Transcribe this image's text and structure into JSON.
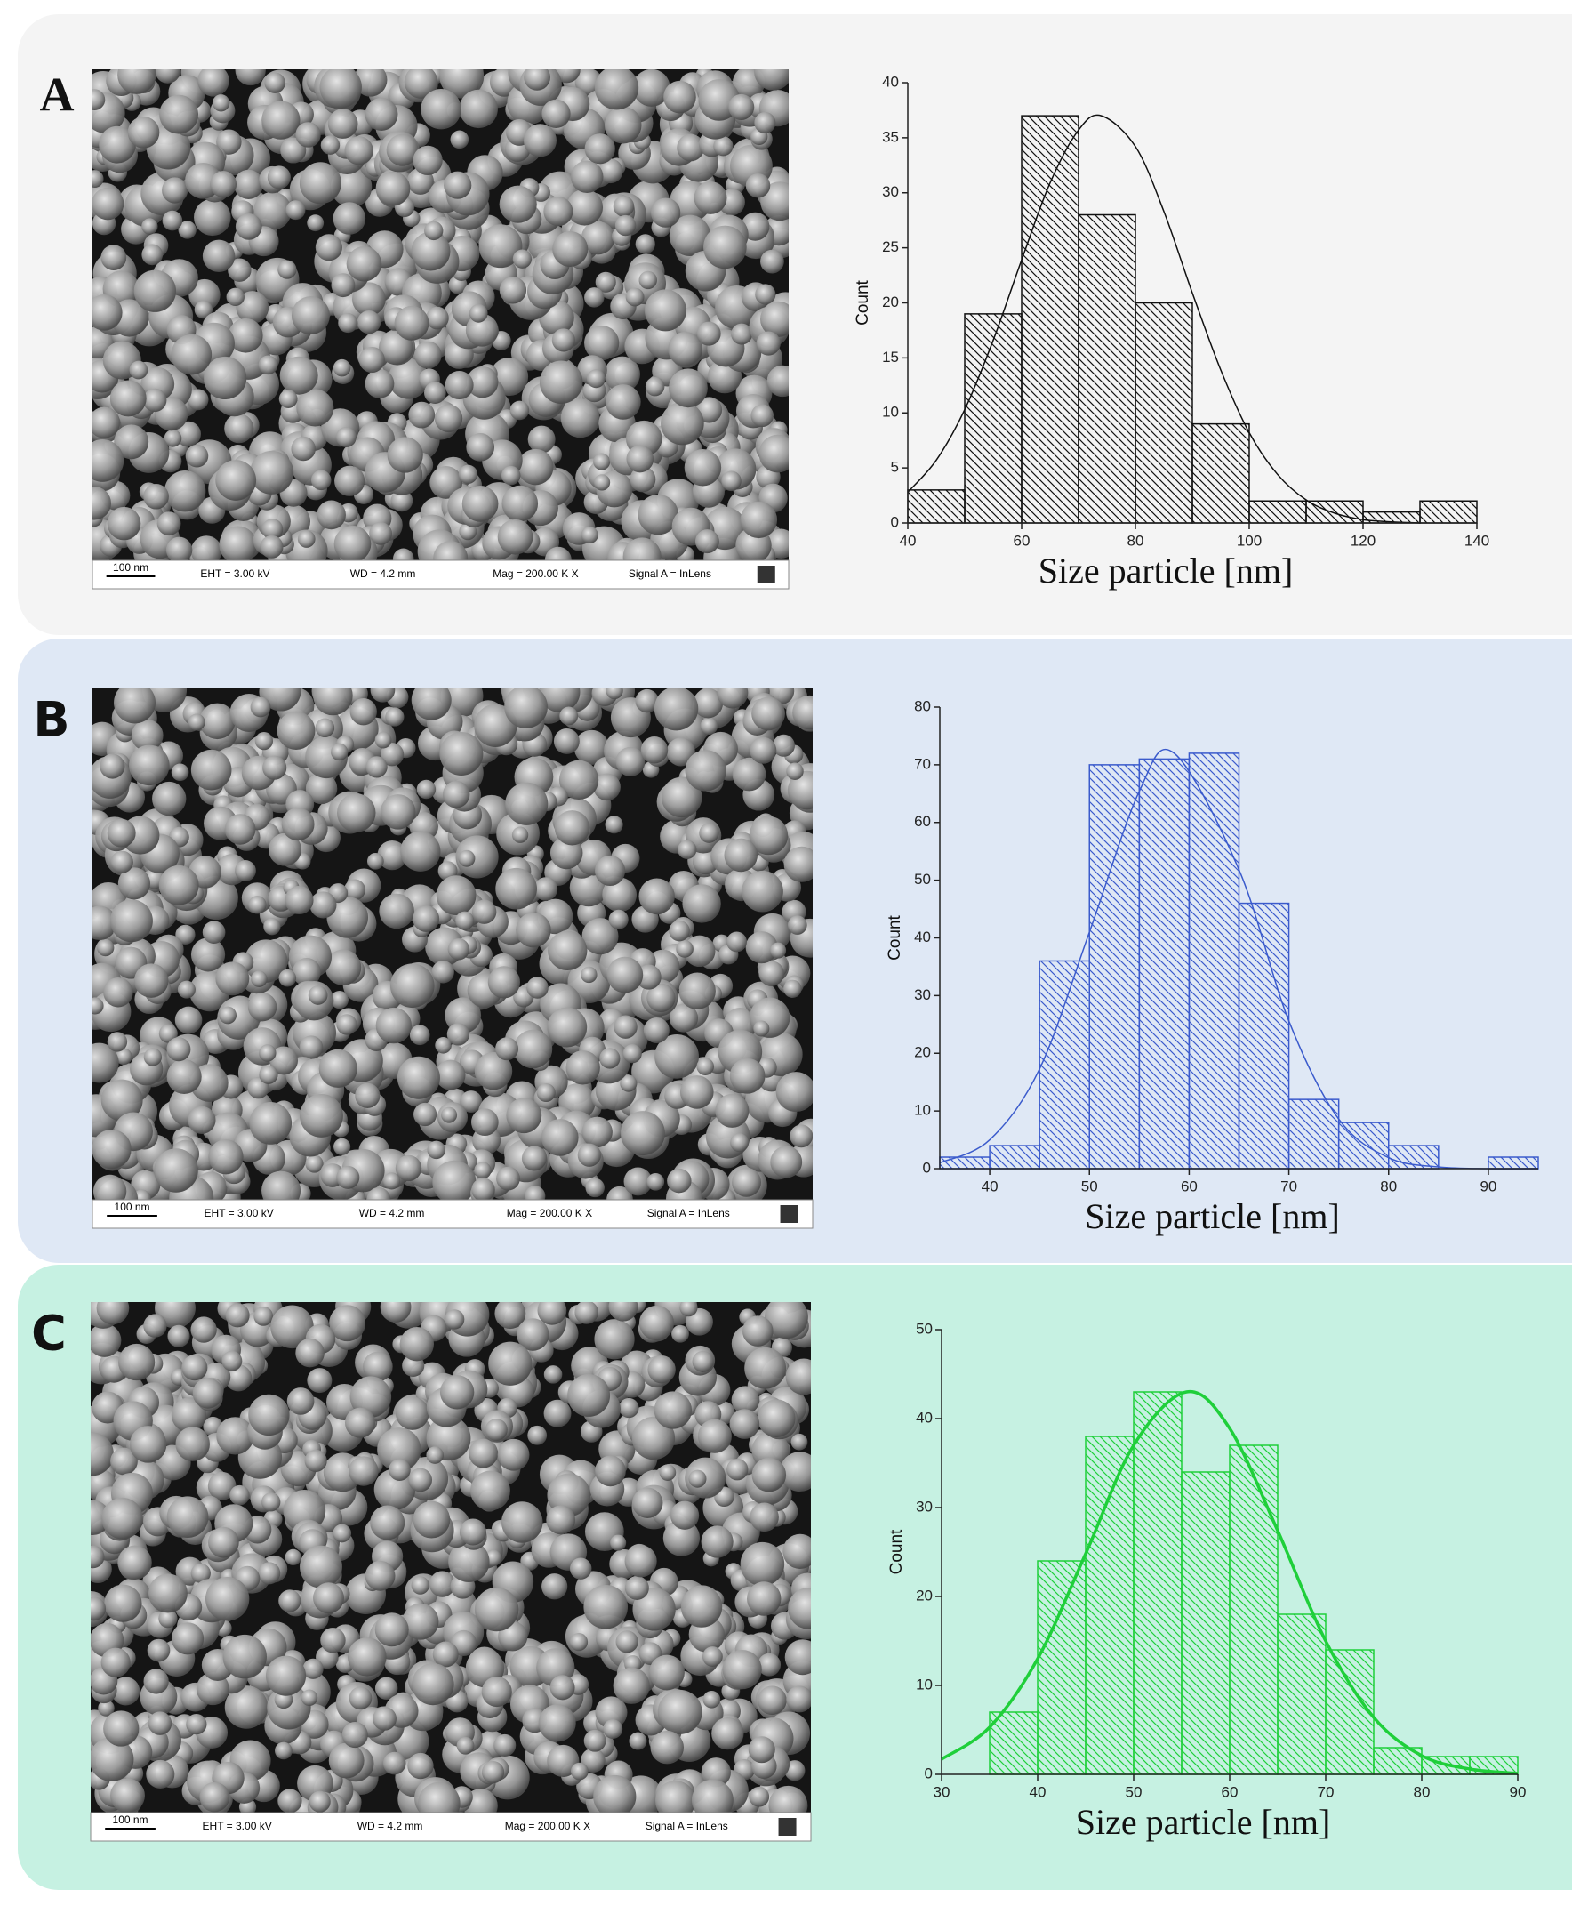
{
  "panels": [
    {
      "label": "A",
      "sem": {
        "scale": "100 nm",
        "eht": "EHT = 3.00 kV",
        "wd": "WD = 4.2 mm",
        "mag": "Mag = 200.00 K X",
        "signal": "Signal A = InLens"
      }
    },
    {
      "label": "B",
      "sem": {
        "scale": "100 nm",
        "eht": "EHT = 3.00 kV",
        "wd": "WD = 4.2 mm",
        "mag": "Mag = 200.00 K X",
        "signal": "Signal A = InLens"
      }
    },
    {
      "label": "C",
      "sem": {
        "scale": "100 nm",
        "eht": "EHT = 3.00 kV",
        "wd": "WD = 4.2 mm",
        "mag": "Mag = 200.00 K X",
        "signal": "Signal A = InLens"
      }
    }
  ],
  "chart_data": [
    {
      "type": "histogram",
      "x_label": "Size particle [nm]",
      "y_label": "Count",
      "color": "#111111",
      "bins": [
        40,
        50,
        60,
        70,
        80,
        90,
        100,
        110,
        120,
        130,
        140
      ],
      "counts": [
        3,
        19,
        37,
        28,
        20,
        9,
        2,
        2,
        1,
        2
      ],
      "fit": {
        "x": [
          40,
          45,
          50,
          55,
          60,
          65,
          70,
          74,
          80,
          85,
          90,
          95,
          100,
          105,
          110,
          115,
          120,
          125,
          130
        ],
        "values": [
          2.8,
          5.7,
          10.3,
          16.6,
          23.9,
          30.9,
          35.7,
          37,
          34.2,
          28.3,
          20.9,
          13.9,
          8.2,
          4.4,
          2.1,
          0.9,
          0.3,
          0.1,
          0
        ]
      },
      "xlim": [
        40,
        140
      ],
      "xticks": [
        40,
        60,
        80,
        100,
        120,
        140
      ],
      "ylim": [
        0,
        40
      ],
      "yticks": [
        0,
        5,
        10,
        15,
        20,
        25,
        30,
        35,
        40
      ]
    },
    {
      "type": "histogram",
      "x_label": "Size particle [nm]",
      "y_label": "Count",
      "color": "#3b5bcc",
      "bins": [
        35,
        40,
        45,
        50,
        55,
        60,
        65,
        70,
        75,
        80,
        85,
        90,
        95
      ],
      "counts": [
        2,
        4,
        36,
        70,
        71,
        72,
        46,
        12,
        8,
        4,
        0,
        2
      ],
      "fit": {
        "x": [
          35,
          40,
          45,
          50,
          55,
          58.5,
          65,
          70,
          75,
          80,
          85,
          90,
          95
        ],
        "values": [
          1,
          5,
          17.3,
          41,
          65.4,
          72,
          51.8,
          25.6,
          8.6,
          1.9,
          0.3,
          0,
          0
        ]
      },
      "xlim": [
        35,
        95
      ],
      "xticks": [
        40,
        50,
        60,
        70,
        80,
        90
      ],
      "ylim": [
        0,
        80
      ],
      "yticks": [
        0,
        10,
        20,
        30,
        40,
        50,
        60,
        70,
        80
      ]
    },
    {
      "type": "histogram",
      "x_label": "Size particle [nm]",
      "y_label": "Count",
      "color": "#1fcf3a",
      "bins": [
        35,
        40,
        45,
        50,
        55,
        60,
        65,
        70,
        75,
        80,
        85,
        90
      ],
      "counts": [
        7,
        24,
        38,
        43,
        34,
        37,
        18,
        14,
        3,
        2,
        2
      ],
      "fit": {
        "x": [
          30,
          35,
          40,
          45,
          50,
          55.5,
          60,
          65,
          70,
          75,
          80,
          85,
          90
        ],
        "values": [
          1.7,
          5.3,
          13,
          24.8,
          37,
          43,
          38.9,
          27.4,
          15,
          6.4,
          2.1,
          0.6,
          0.1
        ]
      },
      "xlim": [
        30,
        90
      ],
      "xticks": [
        30,
        40,
        50,
        60,
        70,
        80,
        90
      ],
      "ylim": [
        0,
        50
      ],
      "yticks": [
        0,
        10,
        20,
        30,
        40,
        50
      ]
    }
  ]
}
